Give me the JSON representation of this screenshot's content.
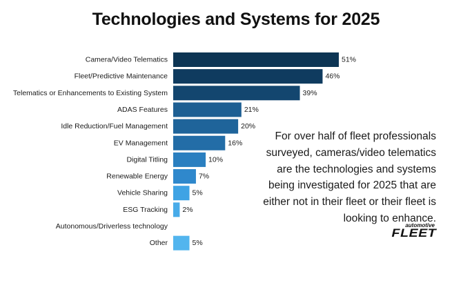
{
  "chart_data": {
    "type": "bar",
    "orientation": "horizontal",
    "title": "Technologies and Systems for 2025",
    "categories": [
      "Camera/Video Telematics",
      "Fleet/Predictive Maintenance",
      "Telematics or Enhancements to Existing System",
      "ADAS Features",
      "Idle Reduction/Fuel Management",
      "EV Management",
      "Digital Titling",
      "Renewable Energy",
      "Vehicle Sharing",
      "ESG Tracking",
      "Autonomous/Driverless technology",
      "Other"
    ],
    "values": [
      51,
      46,
      39,
      21,
      20,
      16,
      10,
      7,
      5,
      2,
      null,
      5
    ],
    "value_labels": [
      "51%",
      "46%",
      "39%",
      "21%",
      "20%",
      "16%",
      "10%",
      "7%",
      "5%",
      "2%",
      "",
      "5%"
    ],
    "colors": [
      "#0d3554",
      "#0f3b5f",
      "#13466f",
      "#1d5f93",
      "#1f649a",
      "#236da7",
      "#2a7fc0",
      "#2f88cc",
      "#3fa3e4",
      "#48abe9",
      "#4fb1ec",
      "#52b5ee"
    ],
    "xlim": [
      0,
      51
    ],
    "xlabel": "",
    "ylabel": "",
    "grid": false,
    "legend": "none"
  },
  "note": "For over half of fleet professionals surveyed, cameras/video telematics are the technologies and systems being investigated for 2025 that are either not in their fleet or their fleet is looking to enhance.",
  "logo": {
    "small": "automotive",
    "big": "FLEET"
  }
}
